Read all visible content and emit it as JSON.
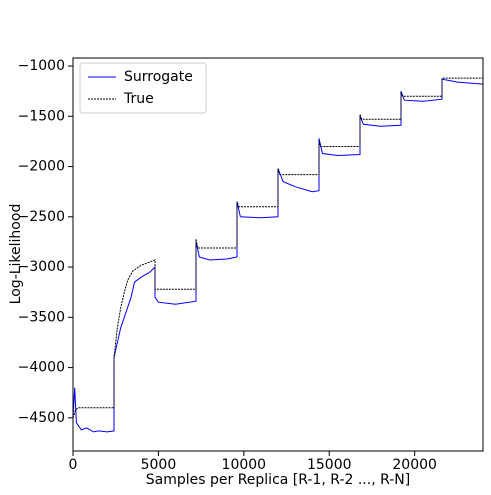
{
  "chart_data": {
    "type": "line",
    "xlabel": "Samples per Replica [R-1, R-2 ..., R-N]",
    "ylabel": "Log-Likelihood",
    "xlim": [
      0,
      24000
    ],
    "xticks": [
      0,
      5000,
      10000,
      15000,
      20000
    ],
    "ylim": [
      -4830,
      -920
    ],
    "yticks": [
      {
        "value": -1000,
        "label": "−1000"
      },
      {
        "value": -1500,
        "label": "−1500"
      },
      {
        "value": -2000,
        "label": "−2000"
      },
      {
        "value": -2500,
        "label": "−2500"
      },
      {
        "value": -3000,
        "label": "−3000"
      },
      {
        "value": -3500,
        "label": "−3500"
      },
      {
        "value": -4000,
        "label": "−4000"
      },
      {
        "value": -4500,
        "label": "−4500"
      }
    ],
    "legend": "upper left",
    "series": [
      {
        "name": "Surrogate",
        "color": "#0000ff",
        "dash": "solid",
        "x": [
          0,
          100,
          200,
          500,
          800,
          1200,
          1500,
          2000,
          2400,
          2400,
          2600,
          2800,
          3000,
          3200,
          3400,
          3600,
          4000,
          4500,
          4800,
          4800,
          5000,
          6000,
          7200,
          7200,
          7400,
          8000,
          9000,
          9600,
          9600,
          9800,
          11000,
          12000,
          12000,
          12300,
          13000,
          14000,
          14400,
          14400,
          14600,
          15500,
          16800,
          16800,
          17000,
          18000,
          19200,
          19200,
          19400,
          20500,
          21600,
          21600,
          22500,
          24000
        ],
        "values": [
          -4500,
          -4200,
          -4550,
          -4620,
          -4600,
          -4640,
          -4630,
          -4640,
          -4630,
          -3900,
          -3750,
          -3600,
          -3500,
          -3400,
          -3300,
          -3150,
          -3100,
          -3050,
          -3000,
          -3300,
          -3350,
          -3370,
          -3340,
          -2750,
          -2900,
          -2930,
          -2920,
          -2900,
          -2350,
          -2500,
          -2510,
          -2500,
          -2020,
          -2150,
          -2200,
          -2250,
          -2240,
          -1720,
          -1870,
          -1890,
          -1880,
          -1500,
          -1580,
          -1600,
          -1590,
          -1250,
          -1340,
          -1350,
          -1330,
          -1130,
          -1160,
          -1180
        ]
      },
      {
        "name": "True",
        "color": "#000000",
        "dash": "dashed",
        "x": [
          0,
          150,
          300,
          2400,
          2400,
          2600,
          2800,
          3000,
          3200,
          3500,
          4000,
          4500,
          4800,
          4800,
          7200,
          7200,
          7300,
          9600,
          9600,
          9700,
          12000,
          12000,
          12100,
          14400,
          14400,
          14500,
          16800,
          16800,
          16900,
          19200,
          19200,
          19300,
          21600,
          21600,
          24000
        ],
        "values": [
          -4500,
          -4420,
          -4400,
          -4400,
          -3900,
          -3600,
          -3400,
          -3250,
          -3130,
          -3040,
          -2980,
          -2950,
          -2930,
          -3220,
          -3220,
          -2720,
          -2810,
          -2810,
          -2350,
          -2400,
          -2400,
          -2020,
          -2080,
          -2080,
          -1750,
          -1800,
          -1800,
          -1480,
          -1530,
          -1530,
          -1270,
          -1300,
          -1300,
          -1120,
          -1120
        ]
      }
    ]
  }
}
